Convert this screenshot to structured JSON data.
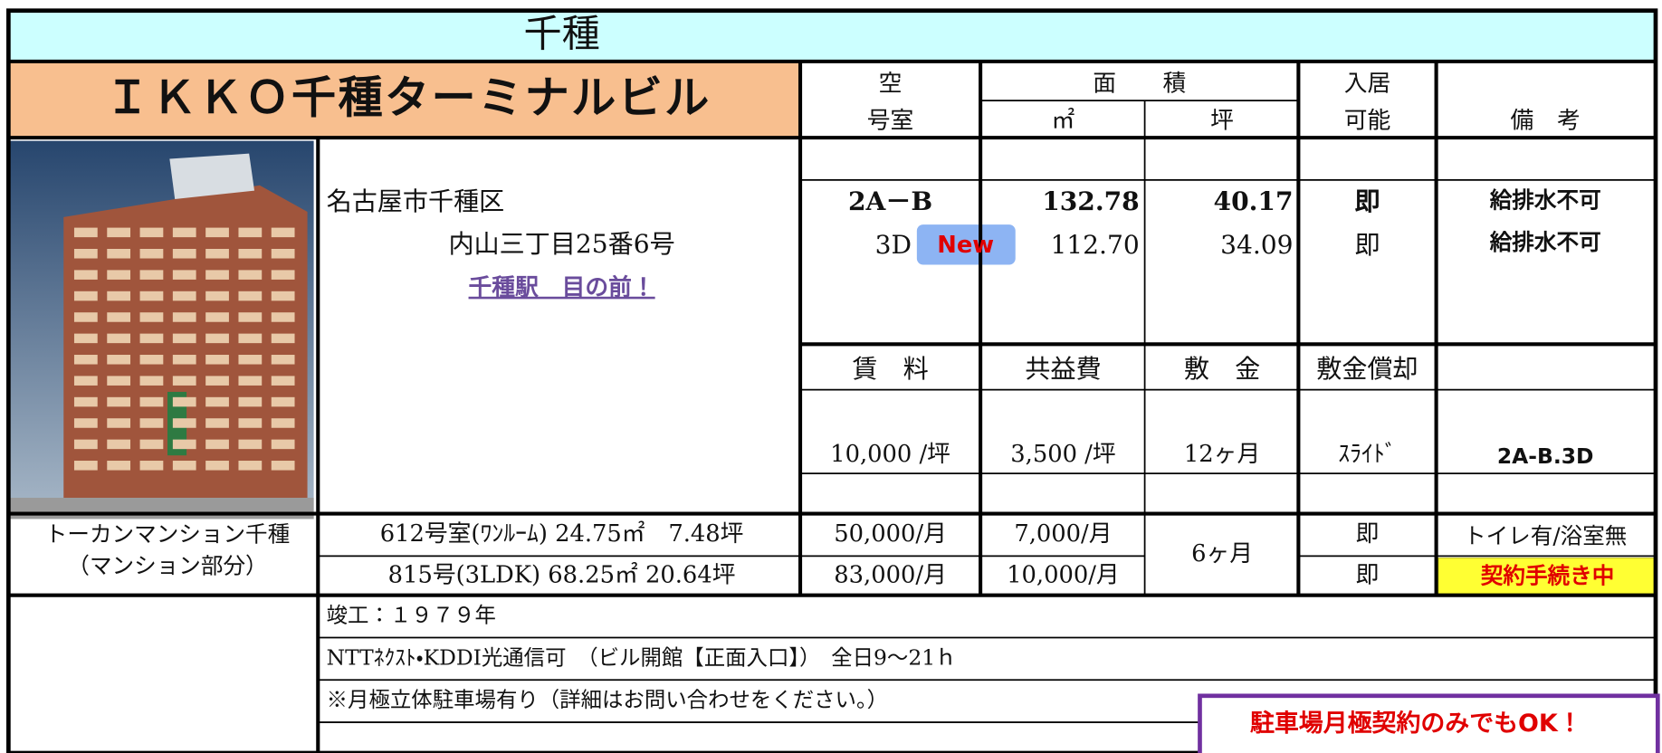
{
  "header": {
    "area": "千種",
    "building_name": "ＩＫＫＯ千種ターミナルビル"
  },
  "columns": {
    "room": [
      "空",
      "号室"
    ],
    "area": "面　　積",
    "sqm": "㎡",
    "tsubo": "坪",
    "move_in": [
      "入居",
      "可能"
    ],
    "remarks": "備　考"
  },
  "address": {
    "lines": [
      "名古屋市千種区",
      "内山三丁目25番6号"
    ],
    "highlight": "千種駅　目の前！"
  },
  "units": [
    {
      "room": "2A－B",
      "sqm": "132.78",
      "tsubo": "40.17",
      "move_in": "即",
      "remarks": "給排水不可"
    },
    {
      "room": "3D",
      "badge": "New",
      "sqm": "112.70",
      "tsubo": "34.09",
      "move_in": "即",
      "remarks": "給排水不可"
    }
  ],
  "terms": {
    "headers": [
      "賃　料",
      "共益費",
      "敷　金",
      "敷金償却"
    ],
    "values": [
      "10,000 /坪",
      "3,500 /坪",
      "12ヶ月",
      "ｽﾗｲﾄﾞ",
      "2A-B.3D"
    ]
  },
  "mansion": {
    "name": [
      "トーカンマンション千種",
      "（マンション部分）"
    ],
    "deposit": "6ヶ月",
    "rows": [
      {
        "room": "612号室(ﾜﾝﾙｰﾑ) 24.75㎡　7.48坪",
        "rent": "50,000/月",
        "fee": "7,000/月",
        "move_in": "即",
        "remarks": "トイレ有/浴室無"
      },
      {
        "room": "815号(3LDK) 68.25㎡ 20.64坪",
        "rent": "83,000/月",
        "fee": "10,000/月",
        "move_in": "即",
        "status": "契約手続き中"
      }
    ]
  },
  "notes": [
    "竣工：１９７９年",
    "NTTﾈｸｽﾄ・KDDI光通信可　（ビル開館【正面入口】）　全日9～21ｈ",
    "※月極立体駐車場有り（詳細はお問い合わせをください。）"
  ],
  "callout": "駐車場月極契約のみでもOK！"
}
